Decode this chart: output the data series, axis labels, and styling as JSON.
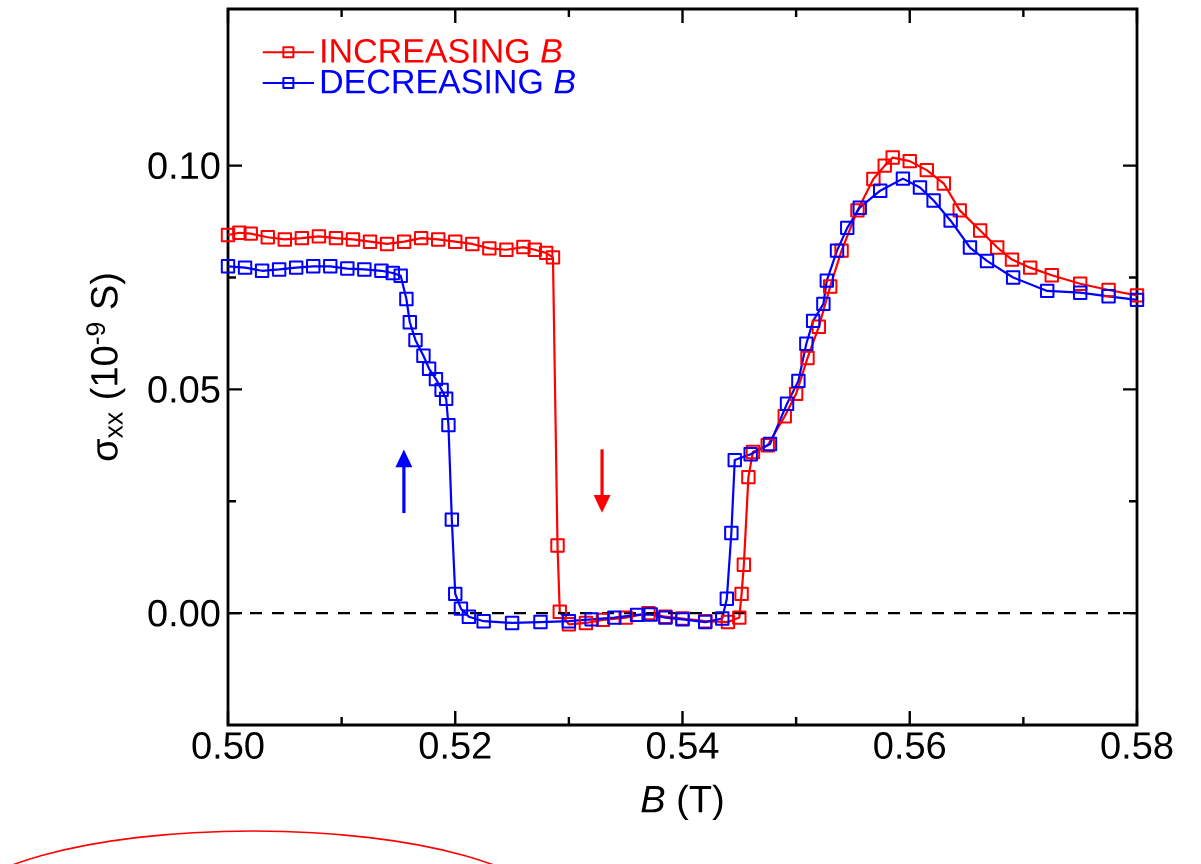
{
  "chart_data": {
    "type": "line",
    "xlabel": "*B* (T)",
    "ylabel": "σ$_{xx}$ (10$^{-9}$ S)",
    "xlim": [
      0.5,
      0.58
    ],
    "xticks": [
      {
        "value": 0.5,
        "label": "0.50"
      },
      0.52,
      0.54,
      0.56,
      0.58
    ],
    "ylim": [
      -0.025,
      0.135
    ],
    "yticks": [
      {
        "value": 0.0,
        "label": "0.00"
      },
      0.05,
      {
        "value": 0.1,
        "label": "0.10"
      }
    ],
    "marker": "square",
    "line_style": "solid",
    "legend": "top left",
    "grid": false,
    "ref_lines": [
      {
        "axis": "y",
        "value": 0,
        "label": null,
        "color": "#000000",
        "line_style": "dashed"
      }
    ],
    "series": [
      {
        "name": "INCREASING *B*",
        "color": "#ff0000",
        "x": [
          0.5,
          0.501,
          0.502,
          0.5035,
          0.505,
          0.5065,
          0.508,
          0.5095,
          0.511,
          0.5125,
          0.514,
          0.5155,
          0.517,
          0.5185,
          0.52,
          0.5215,
          0.523,
          0.5245,
          0.526,
          0.527,
          0.528,
          0.5286,
          0.529,
          0.5292,
          0.53,
          0.5315,
          0.533,
          0.535,
          0.537,
          0.5385,
          0.54,
          0.542,
          0.544,
          0.545,
          0.5452,
          0.5454,
          0.5458,
          0.5462,
          0.5475,
          0.549,
          0.55,
          0.551,
          0.552,
          0.553,
          0.554,
          0.5554,
          0.5568,
          0.5578,
          0.5585,
          0.56,
          0.5615,
          0.563,
          0.5644,
          0.5662,
          0.5677,
          0.569,
          0.5706,
          0.5725,
          0.575,
          0.5775,
          0.58
        ],
        "values": [
          0.0845,
          0.085,
          0.0848,
          0.084,
          0.0835,
          0.0838,
          0.0842,
          0.0838,
          0.0835,
          0.083,
          0.0825,
          0.083,
          0.0838,
          0.0835,
          0.083,
          0.0825,
          0.0815,
          0.0812,
          0.0818,
          0.0812,
          0.0805,
          0.0795,
          0.0151,
          0.0003,
          -0.0025,
          -0.0022,
          -0.0015,
          -0.001,
          0.0,
          -0.0008,
          -0.0012,
          -0.0018,
          -0.002,
          -0.001,
          0.0043,
          0.0108,
          0.0304,
          0.036,
          0.0375,
          0.044,
          0.049,
          0.057,
          0.064,
          0.073,
          0.081,
          0.09,
          0.097,
          0.1,
          0.1018,
          0.101,
          0.099,
          0.096,
          0.09,
          0.0855,
          0.0817,
          0.079,
          0.0772,
          0.0755,
          0.0736,
          0.0722,
          0.071
        ]
      },
      {
        "name": "DECREASING *B*",
        "color": "#0000ff",
        "x": [
          0.5,
          0.5015,
          0.503,
          0.5045,
          0.506,
          0.5075,
          0.509,
          0.5105,
          0.512,
          0.5135,
          0.5145,
          0.5152,
          0.5157,
          0.516,
          0.5165,
          0.5172,
          0.5177,
          0.5183,
          0.5188,
          0.5192,
          0.5194,
          0.5197,
          0.52,
          0.5205,
          0.5212,
          0.5225,
          0.525,
          0.5275,
          0.53,
          0.532,
          0.534,
          0.536,
          0.5372,
          0.5385,
          0.54,
          0.542,
          0.5435,
          0.5439,
          0.5443,
          0.5446,
          0.546,
          0.5477,
          0.5492,
          0.5502,
          0.5509,
          0.5515,
          0.5524,
          0.5527,
          0.5536,
          0.5545,
          0.5556,
          0.5574,
          0.5594,
          0.5609,
          0.5621,
          0.5636,
          0.5653,
          0.5668,
          0.5691,
          0.5721,
          0.575,
          0.5775,
          0.58
        ],
        "values": [
          0.0775,
          0.0772,
          0.0765,
          0.0768,
          0.0772,
          0.0775,
          0.0775,
          0.077,
          0.0768,
          0.0765,
          0.076,
          0.0754,
          0.0702,
          0.065,
          0.061,
          0.0575,
          0.0546,
          0.0523,
          0.0499,
          0.0479,
          0.042,
          0.0209,
          0.0043,
          0.001,
          -0.0008,
          -0.0018,
          -0.0022,
          -0.002,
          -0.0018,
          -0.0014,
          -0.001,
          -0.0004,
          -0.0003,
          -0.001,
          -0.0014,
          -0.002,
          -0.0012,
          0.0032,
          0.0179,
          0.0342,
          0.0355,
          0.0378,
          0.0468,
          0.0519,
          0.0602,
          0.0653,
          0.0691,
          0.0743,
          0.081,
          0.0861,
          0.0906,
          0.0944,
          0.0971,
          0.0951,
          0.0922,
          0.0877,
          0.0817,
          0.0787,
          0.075,
          0.072,
          0.0716,
          0.0708,
          0.07
        ]
      }
    ]
  }
}
